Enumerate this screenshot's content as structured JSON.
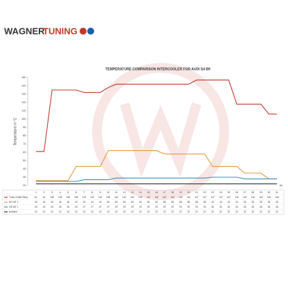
{
  "header": {
    "brand_a": "WAGNER",
    "brand_b": "TUNING"
  },
  "chart_data": {
    "type": "line",
    "title": "TEMPERATURE COMPARISON INTERCOOLER FOR AUDI S4 B9",
    "y_label": "Temperature in °C",
    "x_label": "t/s",
    "x": [
      1,
      2,
      3,
      4,
      5,
      6,
      7,
      8,
      9,
      10,
      11,
      12,
      13,
      14,
      15,
      16,
      17,
      18,
      19,
      20,
      21,
      22,
      23,
      24,
      25,
      26,
      27,
      28,
      29,
      30,
      31
    ],
    "xlim": [
      1,
      31
    ],
    "ylim": [
      20,
      150
    ],
    "yticks": [
      20,
      30,
      40,
      50,
      60,
      70,
      80,
      90,
      100,
      110,
      120,
      130,
      140,
      150
    ],
    "grid": false,
    "series": [
      {
        "name": "Turbo Outlet Temp",
        "color": "#c0392b",
        "values": [
          61,
          61,
          135,
          135,
          135,
          135,
          132,
          132,
          132,
          138,
          142,
          142,
          142,
          142,
          142,
          142,
          142,
          142,
          142,
          142,
          147,
          147,
          147,
          147,
          147,
          118,
          118,
          118,
          118,
          106,
          106
        ]
      },
      {
        "name": "WT IAT 2",
        "color": "#e69a3c",
        "values": [
          26,
          26,
          26,
          26,
          26,
          43,
          43,
          43,
          43,
          62,
          62,
          62,
          62,
          62,
          62,
          62,
          58,
          58,
          58,
          58,
          58,
          58,
          43,
          43,
          43,
          43,
          35,
          35,
          35,
          28,
          28
        ]
      },
      {
        "name": "OE IAT 1",
        "color": "#3a8fb7",
        "values": [
          25,
          25,
          25,
          25,
          25,
          25,
          27,
          27,
          27,
          27,
          29,
          29,
          29,
          29,
          29,
          29,
          29,
          29,
          29,
          29,
          29,
          29,
          30,
          30,
          30,
          30,
          28,
          28,
          28,
          28,
          28
        ]
      },
      {
        "name": "Ambient",
        "color": "#333333",
        "values": [
          22,
          22,
          22,
          22,
          22,
          22,
          22,
          22,
          22,
          22,
          22,
          22,
          22,
          22,
          22,
          22,
          22,
          22,
          22,
          22,
          22,
          22,
          22,
          22,
          22,
          22,
          22,
          22,
          22,
          22,
          22
        ]
      }
    ]
  }
}
